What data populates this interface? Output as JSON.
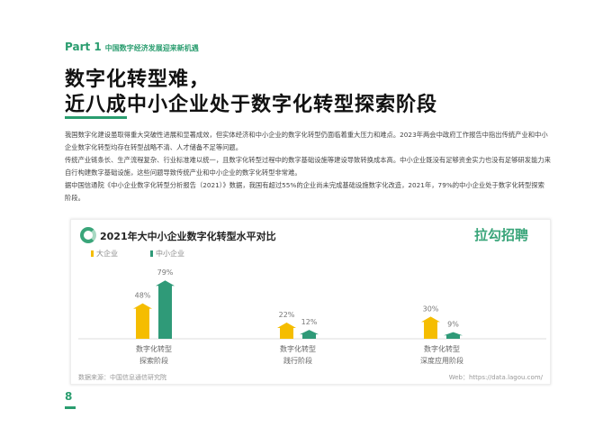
{
  "header": {
    "part": "Part 1",
    "section": "中国数字经济发展迎来新机遇"
  },
  "title": {
    "line1": "数字化转型难，",
    "line2_underlined": "近八成",
    "line2_rest": "中小企业处于数字化转型探索阶段"
  },
  "paragraphs": [
    "我国数字化建设虽取得重大突破性进展和显著成效，但实体经济和中小企业的数字化转型仍面临着重大压力和难点。2023年两会中政府工作报告中指出传统产业和中小企业数字化转型均存在转型战略不清、人才储备不足等问题。",
    "传统产业链条长、生产流程复杂、行业标准难以统一，且数字化转型过程中的数字基础设施等建设导致转换成本高。中小企业既没有足够资金实力也没有足够研发能力来自行构建数字基础设施，这些问题导致传统产业和中小企业的数字化转型非常难。",
    "据中国信通院《中小企业数字化转型分析报告（2021）》数据，我国有超过55%的企业尚未完成基础设施数字化改造，2021年，79%的中小企业处于数字化转型探索阶段。"
  ],
  "chart_data": {
    "type": "bar",
    "title": "2021年大中小企业数字化转型水平对比",
    "categories": [
      [
        "数字化转型",
        "探索阶段"
      ],
      [
        "数字化转型",
        "践行阶段"
      ],
      [
        "数字化转型",
        "深度应用阶段"
      ]
    ],
    "series": [
      {
        "name": "大企业",
        "values": [
          48,
          22,
          30
        ],
        "labels": [
          "48%",
          "22%",
          "30%"
        ],
        "color": "#f5bd00"
      },
      {
        "name": "中小企业",
        "values": [
          79,
          12,
          9
        ],
        "labels": [
          "79%",
          "12%",
          "9%"
        ],
        "color": "#2f9a78"
      }
    ],
    "ylim": [
      0,
      100
    ],
    "grid": false,
    "legend": "top-left",
    "unit": "%"
  },
  "chart_meta": {
    "brand": "拉勾招聘",
    "source": "数据来源：中国信息通信研究院",
    "web": "Web：https://data.lagou.com/"
  },
  "page": {
    "number": "8"
  }
}
